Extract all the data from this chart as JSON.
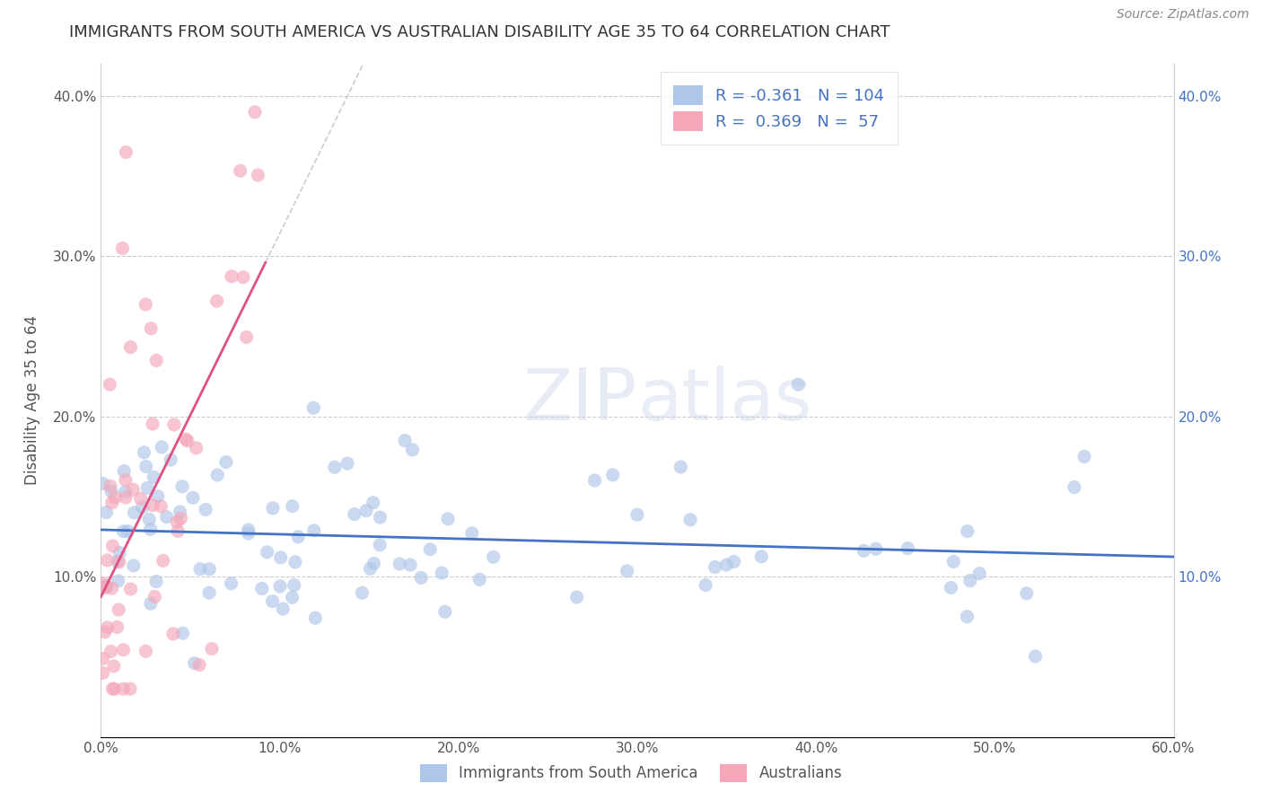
{
  "title": "IMMIGRANTS FROM SOUTH AMERICA VS AUSTRALIAN DISABILITY AGE 35 TO 64 CORRELATION CHART",
  "source": "Source: ZipAtlas.com",
  "xlabel_legend1": "Immigrants from South America",
  "xlabel_legend2": "Australians",
  "ylabel": "Disability Age 35 to 64",
  "R1": -0.361,
  "N1": 104,
  "R2": 0.369,
  "N2": 57,
  "color1": "#aec6e8",
  "color2": "#f4a7b9",
  "line_color1": "#4472C4",
  "line_color2": "#E05080",
  "watermark_zip": "ZIP",
  "watermark_atlas": "atlas",
  "xmin": 0.0,
  "xmax": 0.6,
  "ymin": 0.0,
  "ymax": 0.42,
  "yticks": [
    0.1,
    0.2,
    0.3,
    0.4
  ],
  "xticks": [
    0.0,
    0.1,
    0.2,
    0.3,
    0.4,
    0.5,
    0.6
  ]
}
